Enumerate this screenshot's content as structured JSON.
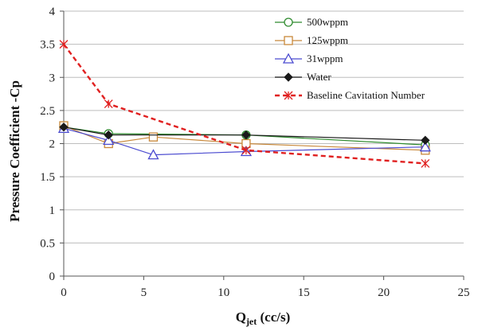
{
  "chart_data": {
    "type": "line",
    "xlabel_main": "Q",
    "xlabel_sub": "jet",
    "xlabel_unit": " (cc/s)",
    "ylabel": "Pressure Coefficient  -Cp",
    "xlim": [
      0,
      25
    ],
    "ylim": [
      0,
      4
    ],
    "xticks": [
      0,
      5,
      10,
      15,
      20,
      25
    ],
    "yticks": [
      0,
      0.5,
      1,
      1.5,
      2,
      2.5,
      3,
      3.5,
      4
    ],
    "xtick_labels": [
      "0",
      "5",
      "10",
      "15",
      "20",
      "25"
    ],
    "ytick_labels": [
      "0",
      "0.5",
      "1",
      "1.5",
      "2",
      "2.5",
      "3",
      "3.5",
      "4"
    ],
    "grid": "horizontal",
    "legend_position": "top-right",
    "series": [
      {
        "name": "500wppm",
        "color": "#2e8b2e",
        "marker": "circle-open",
        "dash": "solid",
        "x": [
          0,
          2.8,
          11.4,
          22.6
        ],
        "y": [
          2.25,
          2.15,
          2.13,
          1.98
        ]
      },
      {
        "name": "125wppm",
        "color": "#c8883a",
        "marker": "square-open",
        "dash": "solid",
        "x": [
          0,
          2.8,
          5.6,
          11.4,
          22.6
        ],
        "y": [
          2.27,
          2.0,
          2.1,
          2.0,
          1.9
        ]
      },
      {
        "name": "31wppm",
        "color": "#4b4bd0",
        "marker": "triangle-open",
        "dash": "solid",
        "x": [
          0,
          2.8,
          5.6,
          11.4,
          22.6
        ],
        "y": [
          2.23,
          2.05,
          1.83,
          1.88,
          1.95
        ]
      },
      {
        "name": "Water",
        "color": "#1a1a1a",
        "marker": "diamond-filled",
        "dash": "solid",
        "x": [
          0,
          2.8,
          11.4,
          22.6
        ],
        "y": [
          2.25,
          2.13,
          2.13,
          2.05
        ]
      },
      {
        "name": "Baseline Cavitation Number",
        "color": "#e02020",
        "marker": "star",
        "dash": "dashed",
        "x": [
          0,
          2.8,
          11.4,
          22.6
        ],
        "y": [
          3.5,
          2.6,
          1.9,
          1.7
        ]
      }
    ]
  }
}
